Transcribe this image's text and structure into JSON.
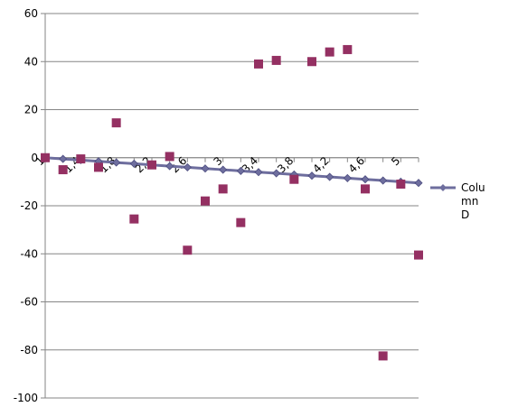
{
  "chart_data": {
    "type": "line",
    "title": "",
    "xlabel": "",
    "ylabel": "",
    "ylim": [
      -100,
      60
    ],
    "y_ticks": [
      "60",
      "40",
      "20",
      "0",
      "-20",
      "-40",
      "-60",
      "-80",
      "-100"
    ],
    "x": [
      1.0,
      1.2,
      1.4,
      1.6,
      1.8,
      2.0,
      2.2,
      2.4,
      2.6,
      2.8,
      3.0,
      3.2,
      3.4,
      3.6,
      3.8,
      4.0,
      4.2,
      4.4,
      4.6,
      4.8,
      5.0,
      5.2
    ],
    "x_tick_labels": [
      "1",
      "1,4",
      "1,8",
      "2,2",
      "2,6",
      "3",
      "3,4",
      "3,8",
      "4,2",
      "4,6",
      "5"
    ],
    "x_tick_values": [
      1.0,
      1.4,
      1.8,
      2.2,
      2.6,
      3.0,
      3.4,
      3.8,
      4.2,
      4.6,
      5.0
    ],
    "grid": "horizontal",
    "legend_position": "right",
    "series": [
      {
        "name": "Column D",
        "legend_lines": [
          "Colu",
          "mn",
          "D"
        ],
        "kind": "line",
        "marker": "diamond",
        "color": "#6E6E9E",
        "values": [
          0,
          -0.5,
          -1,
          -1.5,
          -2,
          -2.5,
          -3,
          -3.5,
          -4,
          -4.5,
          -5,
          -5.5,
          -6,
          -6.5,
          -7,
          -7.5,
          -8,
          -8.5,
          -9,
          -9.5,
          -10,
          -10.5
        ]
      },
      {
        "name": "",
        "kind": "scatter",
        "marker": "square",
        "color": "#943062",
        "values": [
          0,
          -5,
          -0.5,
          -4,
          14.5,
          -25.5,
          -3,
          0.5,
          -38.5,
          -18,
          -13,
          -27,
          39,
          40.5,
          -9,
          40,
          44,
          45,
          -13,
          -82.5,
          -11,
          -40.5
        ]
      }
    ]
  }
}
